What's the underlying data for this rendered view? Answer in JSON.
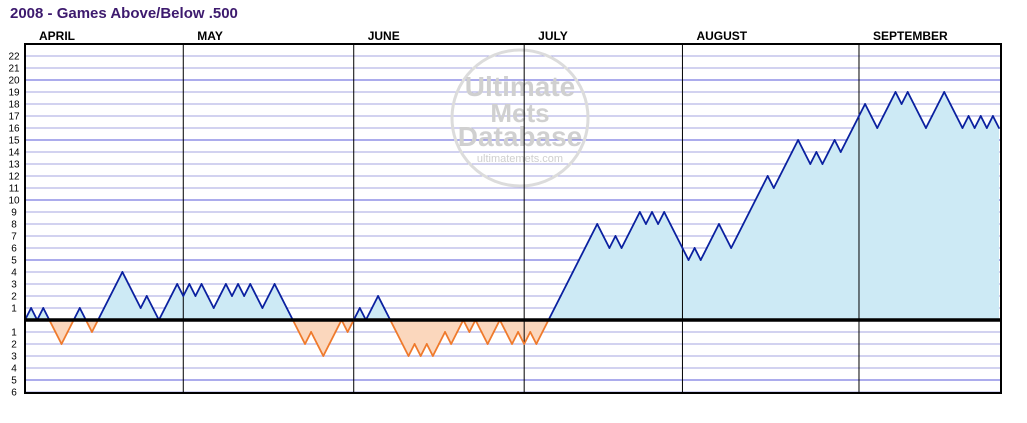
{
  "chart_data": {
    "type": "area",
    "title": "2008 - Games Above/Below .500",
    "months": [
      "APRIL",
      "MAY",
      "JUNE",
      "JULY",
      "AUGUST",
      "SEPTEMBER"
    ],
    "month_game_starts": [
      0,
      26,
      54,
      82,
      108,
      137
    ],
    "ylim": [
      -6,
      22
    ],
    "y_ticks_above": [
      1,
      2,
      3,
      4,
      5,
      6,
      7,
      8,
      9,
      10,
      11,
      12,
      13,
      14,
      15,
      16,
      17,
      18,
      19,
      20,
      21,
      22
    ],
    "y_ticks_below": [
      1,
      2,
      3,
      4,
      5,
      6
    ],
    "series": [
      {
        "values": [
          0,
          1,
          0,
          1,
          0,
          -1,
          -2,
          -1,
          0,
          1,
          0,
          -1,
          0,
          1,
          2,
          3,
          4,
          3,
          2,
          1,
          2,
          1,
          0,
          1,
          2,
          3,
          2,
          3,
          2,
          3,
          2,
          1,
          2,
          3,
          2,
          3,
          2,
          3,
          2,
          1,
          2,
          3,
          2,
          1,
          0,
          -1,
          -2,
          -1,
          -2,
          -3,
          -2,
          -1,
          0,
          -1,
          0,
          1,
          0,
          1,
          2,
          1,
          0,
          -1,
          -2,
          -3,
          -2,
          -3,
          -2,
          -3,
          -2,
          -1,
          -2,
          -1,
          0,
          -1,
          0,
          -1,
          -2,
          -1,
          0,
          -1,
          -2,
          -1,
          -2,
          -1,
          -2,
          -1,
          0,
          1,
          2,
          3,
          4,
          5,
          6,
          7,
          8,
          7,
          6,
          7,
          6,
          7,
          8,
          9,
          8,
          9,
          8,
          9,
          8,
          7,
          6,
          5,
          6,
          5,
          6,
          7,
          8,
          7,
          6,
          7,
          8,
          9,
          10,
          11,
          12,
          11,
          12,
          13,
          14,
          15,
          14,
          13,
          14,
          13,
          14,
          15,
          14,
          15,
          16,
          17,
          18,
          17,
          16,
          17,
          18,
          19,
          18,
          19,
          18,
          17,
          16,
          17,
          18,
          19,
          18,
          17,
          16,
          17,
          16,
          17,
          16,
          17,
          16
        ]
      }
    ],
    "colors": {
      "line": "#0b21a0",
      "above_fill": "#cdeaf5",
      "below_fill": "#fbd7bd",
      "below_line": "#ef7a2c",
      "gridline": "#a6a6e0",
      "gridline_major": "#5a5ad8",
      "title": "#3d1a6e"
    },
    "watermark": {
      "line1": "Ultimate",
      "line2": "Mets",
      "line3": "Database",
      "url": "ultimatemets.com"
    }
  }
}
